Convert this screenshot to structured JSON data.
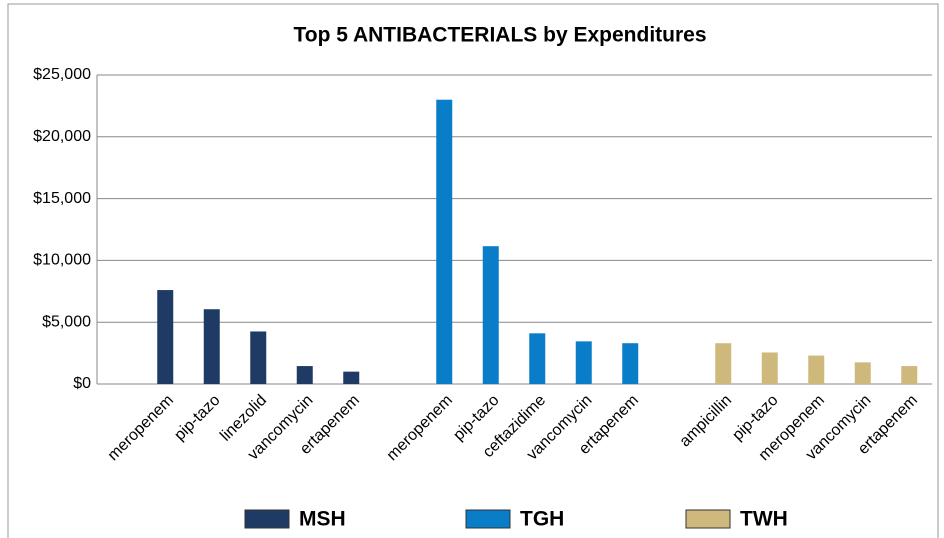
{
  "chart_data": {
    "type": "bar",
    "title": "Top 5 ANTIBACTERIALS by Expenditures",
    "categories": [
      "meropenem",
      "pip-tazo",
      "linezolid",
      "vancomycin",
      "ertapenem",
      null,
      "meropenem",
      "pip-tazo",
      "ceftazidime",
      "vancomycin",
      "ertapenem",
      null,
      "ampicillin",
      "pip-tazo",
      "meropenem",
      "vancomycin",
      "ertapenem"
    ],
    "series": [
      {
        "name": "MSH",
        "color": "#1f3a64",
        "values": [
          7600,
          6050,
          4250,
          1450,
          1000,
          null,
          null,
          null,
          null,
          null,
          null,
          null,
          null,
          null,
          null,
          null,
          null
        ]
      },
      {
        "name": "TGH",
        "color": "#0a7dc8",
        "values": [
          null,
          null,
          null,
          null,
          null,
          null,
          23000,
          11150,
          4100,
          3450,
          3300,
          null,
          null,
          null,
          null,
          null,
          null
        ]
      },
      {
        "name": "TWH",
        "color": "#cfb87c",
        "values": [
          null,
          null,
          null,
          null,
          null,
          null,
          null,
          null,
          null,
          null,
          null,
          null,
          3300,
          2550,
          2300,
          1750,
          1450
        ]
      }
    ],
    "ylim": [
      0,
      25000
    ],
    "yticks": [
      {
        "value": 0,
        "label": "$0"
      },
      {
        "value": 5000,
        "label": "$5,000"
      },
      {
        "value": 10000,
        "label": "$10,000"
      },
      {
        "value": 15000,
        "label": "$15,000"
      },
      {
        "value": 20000,
        "label": "$20,000"
      },
      {
        "value": 25000,
        "label": "$25,000"
      }
    ],
    "grid": true
  }
}
